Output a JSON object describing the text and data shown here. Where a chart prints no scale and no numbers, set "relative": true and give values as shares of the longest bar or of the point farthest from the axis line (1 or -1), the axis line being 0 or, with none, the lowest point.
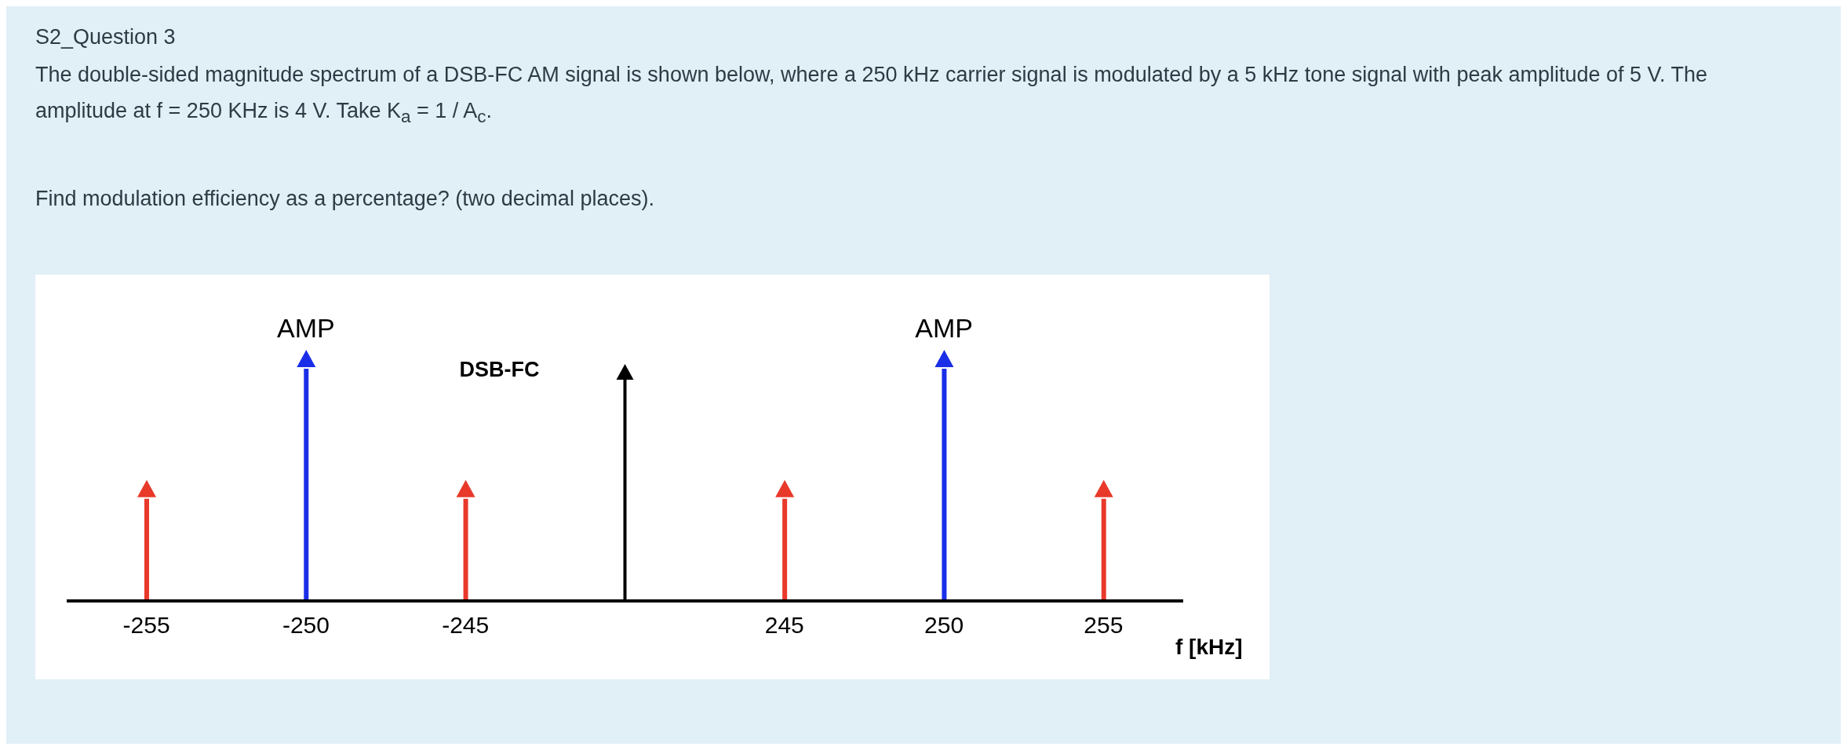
{
  "chart_data": {
    "type": "bar",
    "title": "S2_Question 3",
    "subtitle": "The double-sided magnitude spectrum of a DSB-FC AM signal is shown below, where a 250 kHz carrier signal is modulated by a 5 kHz tone signal with peak amplitude of 5 V. The amplitude at f = 250 KHz is 4 V. Take K$_{a}$ = 1 / A$_{c}$.",
    "annotations": [
      "Find modulation efficiency as a percentage? (two decimal places).",
      "DSB-FC",
      {
        "text": "AMP",
        "x": "-250",
        "y": 1
      },
      {
        "text": "AMP",
        "x": "250",
        "y": 1
      }
    ],
    "xlabel": "f [kHz]",
    "categories": [
      "-255",
      "-250",
      "-245",
      null,
      "245",
      "250",
      "255"
    ],
    "values": [
      0.44,
      1,
      0.44,
      null,
      0.44,
      1,
      0.44
    ],
    "colors": [
      "#e8392b",
      "#1a2ee8",
      "#e8392b",
      "#000000",
      "#e8392b",
      "#1a2ee8",
      "#e8392b"
    ],
    "relative": true
  }
}
